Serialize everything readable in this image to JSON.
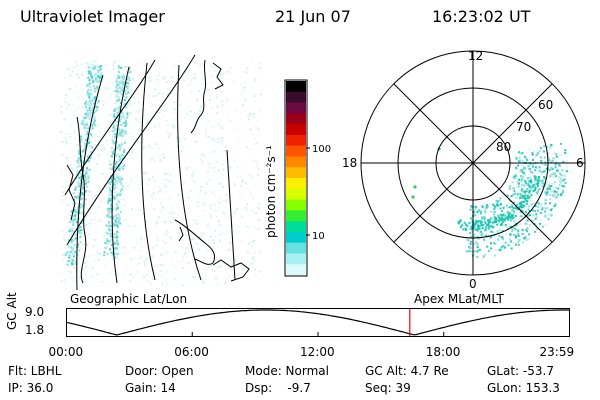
{
  "header": {
    "instrument": "Ultraviolet Imager",
    "date": "21 Jun 07",
    "time": "16:23:02 UT"
  },
  "colorbar": {
    "title": "photon cm⁻²s⁻¹",
    "ticks": [
      {
        "label": "100",
        "value": 100
      },
      {
        "label": "10",
        "value": 10
      }
    ],
    "colors": [
      "#000000",
      "#3a0a2e",
      "#6a0a40",
      "#9a0018",
      "#c80000",
      "#ee2200",
      "#ff5500",
      "#ff8800",
      "#ffbb00",
      "#ffee00",
      "#d8ff00",
      "#88ff00",
      "#33ee33",
      "#00dd99",
      "#00cccc",
      "#66e0e0",
      "#a8f0f0",
      "#dcfafa"
    ]
  },
  "polar": {
    "mlt_labels": [
      "12",
      "18",
      "6",
      "0"
    ],
    "lat_labels": [
      "60",
      "70",
      "80"
    ]
  },
  "geo_panel": {
    "label": "Geographic Lat/Lon"
  },
  "apex_panel": {
    "label": "Apex MLat/MLT"
  },
  "timeline": {
    "axis_label": "GC Alt",
    "y_ticks": [
      "9.0",
      "1.8"
    ],
    "x_ticks": [
      "00:00",
      "06:00",
      "12:00",
      "18:00",
      "23:59"
    ],
    "current_time_hours": 16.38,
    "marker_color": "#ff0000"
  },
  "status": {
    "filter": "Flt: LBHL",
    "ip": "IP: 36.0",
    "door": "Door: Open",
    "gain": "Gain: 14",
    "mode": "Mode: Normal",
    "dsp": "Dsp:    -9.7",
    "gc_alt": "GC Alt: 4.7 Re",
    "seq": "Seq: 39",
    "glat": "GLat: -53.7",
    "glon": "GLon: 153.3"
  }
}
